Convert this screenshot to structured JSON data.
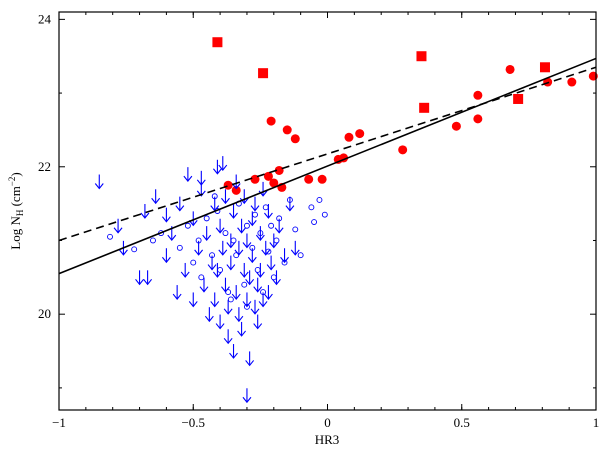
{
  "chart_data": {
    "type": "scatter",
    "title": "",
    "xlabel": "HR3",
    "ylabel": {
      "main": "Log N",
      "subscript": "H",
      "units_pre": " (cm",
      "units_sup": "−2",
      "units_post": ")"
    },
    "xlim": [
      -1,
      1
    ],
    "ylim": [
      18.7,
      24.1
    ],
    "xticks": [
      -1,
      -0.5,
      0,
      0.5,
      1
    ],
    "xtick_labels": [
      "−1",
      "−0.5",
      "0",
      "0.5",
      "1"
    ],
    "yticks": [
      20,
      22,
      24
    ],
    "ytick_labels": [
      "20",
      "22",
      "24"
    ],
    "grid": false,
    "colors": {
      "red": "#ff0000",
      "blue": "#0000ff",
      "fit": "#000000"
    },
    "lines": [
      {
        "style": "solid",
        "x": [
          -1,
          1
        ],
        "y": [
          20.55,
          23.47
        ]
      },
      {
        "style": "dashed",
        "x": [
          -1,
          1
        ],
        "y": [
          21.0,
          23.35
        ]
      }
    ],
    "series": [
      {
        "marker": "filled-square",
        "color": "#ff0000",
        "points": [
          [
            -0.41,
            23.69
          ],
          [
            -0.24,
            23.27
          ],
          [
            0.35,
            23.5
          ],
          [
            0.36,
            22.8
          ],
          [
            0.71,
            22.92
          ],
          [
            0.81,
            23.35
          ]
        ]
      },
      {
        "marker": "filled-circle",
        "color": "#ff0000",
        "points": [
          [
            -0.37,
            21.75
          ],
          [
            -0.34,
            21.68
          ],
          [
            -0.27,
            21.83
          ],
          [
            -0.22,
            21.87
          ],
          [
            -0.2,
            21.78
          ],
          [
            -0.18,
            21.95
          ],
          [
            -0.17,
            21.72
          ],
          [
            -0.21,
            22.62
          ],
          [
            -0.15,
            22.5
          ],
          [
            -0.12,
            22.38
          ],
          [
            -0.07,
            21.83
          ],
          [
            -0.02,
            21.83
          ],
          [
            0.04,
            22.1
          ],
          [
            0.06,
            22.12
          ],
          [
            0.08,
            22.4
          ],
          [
            0.12,
            22.45
          ],
          [
            0.28,
            22.23
          ],
          [
            0.48,
            22.55
          ],
          [
            0.56,
            22.97
          ],
          [
            0.56,
            22.65
          ],
          [
            0.68,
            23.32
          ],
          [
            0.82,
            23.15
          ],
          [
            0.91,
            23.15
          ],
          [
            0.99,
            23.23
          ]
        ]
      },
      {
        "marker": "open-circle",
        "color": "#0000ff",
        "points": [
          [
            -0.81,
            21.05
          ],
          [
            -0.72,
            20.88
          ],
          [
            -0.65,
            21.0
          ],
          [
            -0.62,
            21.1
          ],
          [
            -0.55,
            20.9
          ],
          [
            -0.52,
            21.2
          ],
          [
            -0.5,
            20.7
          ],
          [
            -0.48,
            21.0
          ],
          [
            -0.47,
            20.5
          ],
          [
            -0.45,
            21.3
          ],
          [
            -0.43,
            20.8
          ],
          [
            -0.41,
            21.4
          ],
          [
            -0.4,
            20.6
          ],
          [
            -0.38,
            21.1
          ],
          [
            -0.37,
            20.3
          ],
          [
            -0.35,
            21.0
          ],
          [
            -0.34,
            20.8
          ],
          [
            -0.33,
            21.5
          ],
          [
            -0.31,
            20.4
          ],
          [
            -0.3,
            21.2
          ],
          [
            -0.28,
            20.9
          ],
          [
            -0.27,
            21.35
          ],
          [
            -0.26,
            20.6
          ],
          [
            -0.25,
            21.1
          ],
          [
            -0.24,
            20.3
          ],
          [
            -0.23,
            21.45
          ],
          [
            -0.22,
            20.85
          ],
          [
            -0.21,
            21.2
          ],
          [
            -0.2,
            20.5
          ],
          [
            -0.19,
            21.0
          ],
          [
            -0.18,
            21.3
          ],
          [
            -0.16,
            20.7
          ],
          [
            -0.14,
            21.55
          ],
          [
            -0.12,
            21.15
          ],
          [
            -0.1,
            20.8
          ],
          [
            -0.06,
            21.45
          ],
          [
            -0.05,
            21.25
          ],
          [
            -0.03,
            21.55
          ],
          [
            -0.01,
            21.35
          ],
          [
            -0.3,
            20.1
          ],
          [
            -0.36,
            20.2
          ],
          [
            -0.42,
            21.6
          ]
        ]
      },
      {
        "marker": "arrow-down",
        "color": "#0000ff",
        "points": [
          [
            -0.85,
            21.8
          ],
          [
            -0.78,
            21.2
          ],
          [
            -0.76,
            20.9
          ],
          [
            -0.68,
            21.4
          ],
          [
            -0.67,
            20.5
          ],
          [
            -0.64,
            21.6
          ],
          [
            -0.6,
            20.8
          ],
          [
            -0.58,
            21.1
          ],
          [
            -0.56,
            20.3
          ],
          [
            -0.55,
            21.5
          ],
          [
            -0.53,
            20.6
          ],
          [
            -0.52,
            21.9
          ],
          [
            -0.5,
            20.2
          ],
          [
            -0.5,
            21.3
          ],
          [
            -0.48,
            20.9
          ],
          [
            -0.47,
            21.7
          ],
          [
            -0.46,
            20.4
          ],
          [
            -0.45,
            21.1
          ],
          [
            -0.44,
            20.0
          ],
          [
            -0.43,
            20.7
          ],
          [
            -0.42,
            21.5
          ],
          [
            -0.42,
            20.2
          ],
          [
            -0.41,
            22.0
          ],
          [
            -0.41,
            20.6
          ],
          [
            -0.4,
            21.2
          ],
          [
            -0.4,
            19.9
          ],
          [
            -0.39,
            20.9
          ],
          [
            -0.39,
            22.05
          ],
          [
            -0.38,
            20.4
          ],
          [
            -0.38,
            21.6
          ],
          [
            -0.37,
            19.7
          ],
          [
            -0.37,
            20.1
          ],
          [
            -0.36,
            21.0
          ],
          [
            -0.36,
            20.7
          ],
          [
            -0.35,
            21.4
          ],
          [
            -0.35,
            19.5
          ],
          [
            -0.34,
            20.3
          ],
          [
            -0.34,
            21.8
          ],
          [
            -0.33,
            20.9
          ],
          [
            -0.33,
            20.0
          ],
          [
            -0.32,
            21.2
          ],
          [
            -0.32,
            19.8
          ],
          [
            -0.31,
            20.6
          ],
          [
            -0.31,
            21.6
          ],
          [
            -0.3,
            20.2
          ],
          [
            -0.3,
            21.0
          ],
          [
            -0.29,
            20.5
          ],
          [
            -0.29,
            19.4
          ],
          [
            -0.28,
            21.3
          ],
          [
            -0.28,
            20.8
          ],
          [
            -0.27,
            20.1
          ],
          [
            -0.27,
            21.5
          ],
          [
            -0.26,
            20.4
          ],
          [
            -0.26,
            19.9
          ],
          [
            -0.25,
            21.1
          ],
          [
            -0.25,
            20.6
          ],
          [
            -0.24,
            20.2
          ],
          [
            -0.24,
            21.7
          ],
          [
            -0.23,
            20.9
          ],
          [
            -0.22,
            20.3
          ],
          [
            -0.22,
            21.4
          ],
          [
            -0.21,
            20.7
          ],
          [
            -0.2,
            21.0
          ],
          [
            -0.19,
            20.5
          ],
          [
            -0.18,
            21.2
          ],
          [
            -0.16,
            20.8
          ],
          [
            -0.14,
            21.5
          ],
          [
            -0.12,
            20.9
          ],
          [
            -0.3,
            18.9
          ],
          [
            -0.47,
            21.85
          ],
          [
            -0.6,
            21.35
          ],
          [
            -0.7,
            20.5
          ]
        ]
      }
    ]
  }
}
